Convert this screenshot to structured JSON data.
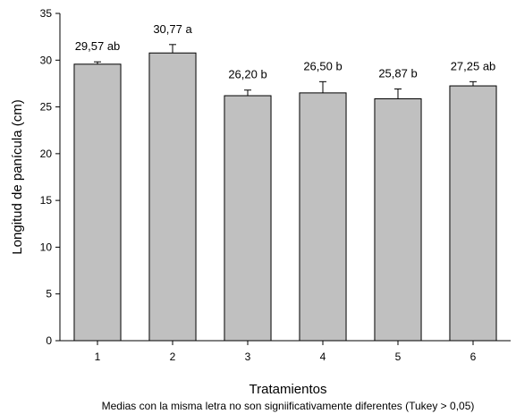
{
  "chart_data": {
    "type": "bar",
    "xlabel": "Tratamientos",
    "ylabel": "Longitud de panícula (cm)",
    "ylim": [
      0,
      35
    ],
    "yticks": [
      "0",
      "5",
      "10",
      "15",
      "20",
      "25",
      "30",
      "35"
    ],
    "categories": [
      "1",
      "2",
      "3",
      "4",
      "5",
      "6"
    ],
    "values": [
      29.57,
      30.77,
      26.2,
      26.5,
      25.87,
      27.25
    ],
    "errors": [
      0.25,
      0.9,
      0.6,
      1.2,
      1.05,
      0.45
    ],
    "bar_labels": [
      "29,57 ab",
      "30,77 a",
      "26,20 b",
      "26,50 b",
      "25,87 b",
      "27,25 ab"
    ],
    "footnote": "Medias con la misma letra no son signiificativamente diferentes (Tukey > 0,05)",
    "bar_color": "#c0c0c0",
    "grid": false,
    "legend": "none"
  }
}
